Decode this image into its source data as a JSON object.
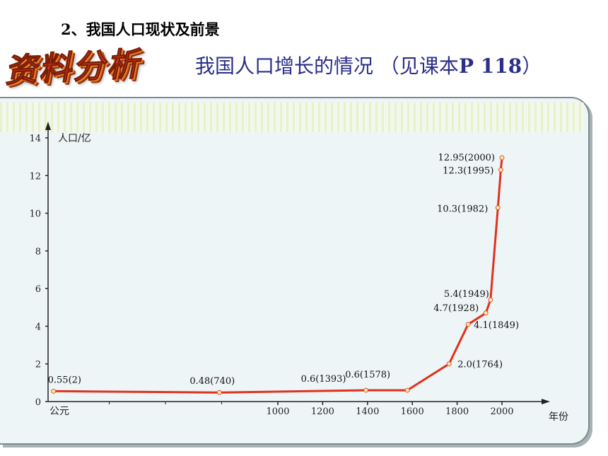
{
  "heading": "2、我国人口现状及前景",
  "badge": {
    "text": "资料分析"
  },
  "subtitle": {
    "main": "我国人口增长的情况",
    "paren_open": "（见课本",
    "ref": "P 118",
    "paren_close": "）"
  },
  "chart_data": {
    "type": "line",
    "ylabel": "人口/亿",
    "xlabel": "年份",
    "origin_label": "公元",
    "ylim": [
      0,
      14
    ],
    "yticks": [
      "0",
      "2",
      "4",
      "6",
      "8",
      "10",
      "12",
      "14"
    ],
    "xticks": [
      "1000",
      "1200",
      "1400",
      "1600",
      "1800",
      "2000"
    ],
    "grid": false,
    "series": [
      {
        "points": [
          {
            "year": 2,
            "value": 0.55
          },
          {
            "year": 740,
            "value": 0.48
          },
          {
            "year": 1393,
            "value": 0.6
          },
          {
            "year": 1578,
            "value": 0.6
          },
          {
            "year": 1764,
            "value": 2.0
          },
          {
            "year": 1849,
            "value": 4.1
          },
          {
            "year": 1928,
            "value": 4.7
          },
          {
            "year": 1949,
            "value": 5.4
          },
          {
            "year": 1982,
            "value": 10.3
          },
          {
            "year": 1995,
            "value": 12.3
          },
          {
            "year": 2000,
            "value": 12.95
          }
        ]
      }
    ],
    "data_labels": [
      "0.55(2)",
      "0.48(740)",
      "0.6(1393)",
      "0.6(1578)",
      "2.0(1764)",
      "4.1(1849)",
      "4.7(1928)",
      "5.4(1949)",
      "10.3(1982)",
      "12.3(1995)",
      "12.95(2000)"
    ],
    "line_color": "#e0321c",
    "marker_color": "#f5e9a6"
  }
}
